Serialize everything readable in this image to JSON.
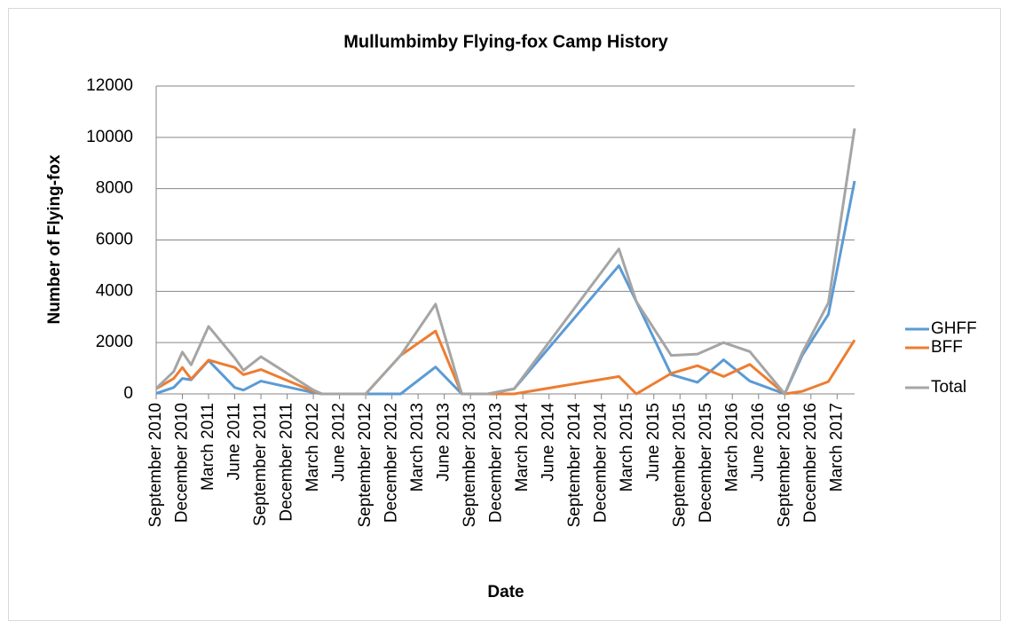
{
  "chart_data": {
    "type": "line",
    "title": "Mullumbimby Flying-fox Camp History",
    "xlabel": "Date",
    "ylabel": "Number of Flying-fox",
    "x": [
      "2010-09",
      "2010-11",
      "2010-12",
      "2011-01",
      "2011-03",
      "2011-06",
      "2011-07",
      "2011-09",
      "2012-03",
      "2012-04",
      "2012-09",
      "2013-01",
      "2013-05",
      "2013-08",
      "2013-11",
      "2014-02",
      "2015-02",
      "2015-04",
      "2015-08",
      "2015-11",
      "2016-02",
      "2016-05",
      "2016-09",
      "2016-11",
      "2017-02",
      "2017-05"
    ],
    "series": [
      {
        "name": "GHFF",
        "color": "#5b9bd5",
        "values": [
          20,
          250,
          600,
          550,
          1300,
          250,
          150,
          500,
          50,
          0,
          0,
          0,
          1050,
          0,
          0,
          200,
          5000,
          3600,
          750,
          450,
          1330,
          500,
          0,
          1500,
          3100,
          8300
        ]
      },
      {
        "name": "BFF",
        "color": "#ed7d31",
        "values": [
          200,
          600,
          1030,
          580,
          1320,
          1030,
          750,
          950,
          100,
          0,
          0,
          1500,
          2450,
          0,
          0,
          0,
          680,
          0,
          800,
          1100,
          680,
          1150,
          0,
          100,
          480,
          2100
        ]
      },
      {
        "name": "Total",
        "color": "#a5a5a5",
        "values": [
          215,
          870,
          1630,
          1130,
          2630,
          1400,
          920,
          1450,
          150,
          0,
          0,
          1500,
          3500,
          0,
          0,
          200,
          5650,
          3600,
          1500,
          1550,
          2000,
          1650,
          0,
          1600,
          3550,
          10350
        ]
      }
    ],
    "xlim": [
      "2010-09",
      "2017-05"
    ],
    "xticks": [
      {
        "value": "2010-09",
        "label": "September 2010"
      },
      {
        "value": "2010-12",
        "label": "December 2010"
      },
      {
        "value": "2011-03",
        "label": "March 2011"
      },
      {
        "value": "2011-06",
        "label": "June 2011"
      },
      {
        "value": "2011-09",
        "label": "September 2011"
      },
      {
        "value": "2011-12",
        "label": "December 2011"
      },
      {
        "value": "2012-03",
        "label": "March 2012"
      },
      {
        "value": "2012-06",
        "label": "June 2012"
      },
      {
        "value": "2012-09",
        "label": "September 2012"
      },
      {
        "value": "2012-12",
        "label": "December 2012"
      },
      {
        "value": "2013-03",
        "label": "March 2013"
      },
      {
        "value": "2013-06",
        "label": "June 2013"
      },
      {
        "value": "2013-09",
        "label": "September 2013"
      },
      {
        "value": "2013-12",
        "label": "December 2013"
      },
      {
        "value": "2014-03",
        "label": "March 2014"
      },
      {
        "value": "2014-06",
        "label": "June 2014"
      },
      {
        "value": "2014-09",
        "label": "September 2014"
      },
      {
        "value": "2014-12",
        "label": "December 2014"
      },
      {
        "value": "2015-03",
        "label": "March 2015"
      },
      {
        "value": "2015-06",
        "label": "June 2015"
      },
      {
        "value": "2015-09",
        "label": "September 2015"
      },
      {
        "value": "2015-12",
        "label": "December 2015"
      },
      {
        "value": "2016-03",
        "label": "March 2016"
      },
      {
        "value": "2016-06",
        "label": "June 2016"
      },
      {
        "value": "2016-09",
        "label": "September 2016"
      },
      {
        "value": "2016-12",
        "label": "December 2016"
      },
      {
        "value": "2017-03",
        "label": "March 2017"
      }
    ],
    "ylim": [
      0,
      12000
    ],
    "yticks": [
      0,
      2000,
      4000,
      6000,
      8000,
      10000,
      12000
    ],
    "grid": true,
    "legend": "right"
  }
}
